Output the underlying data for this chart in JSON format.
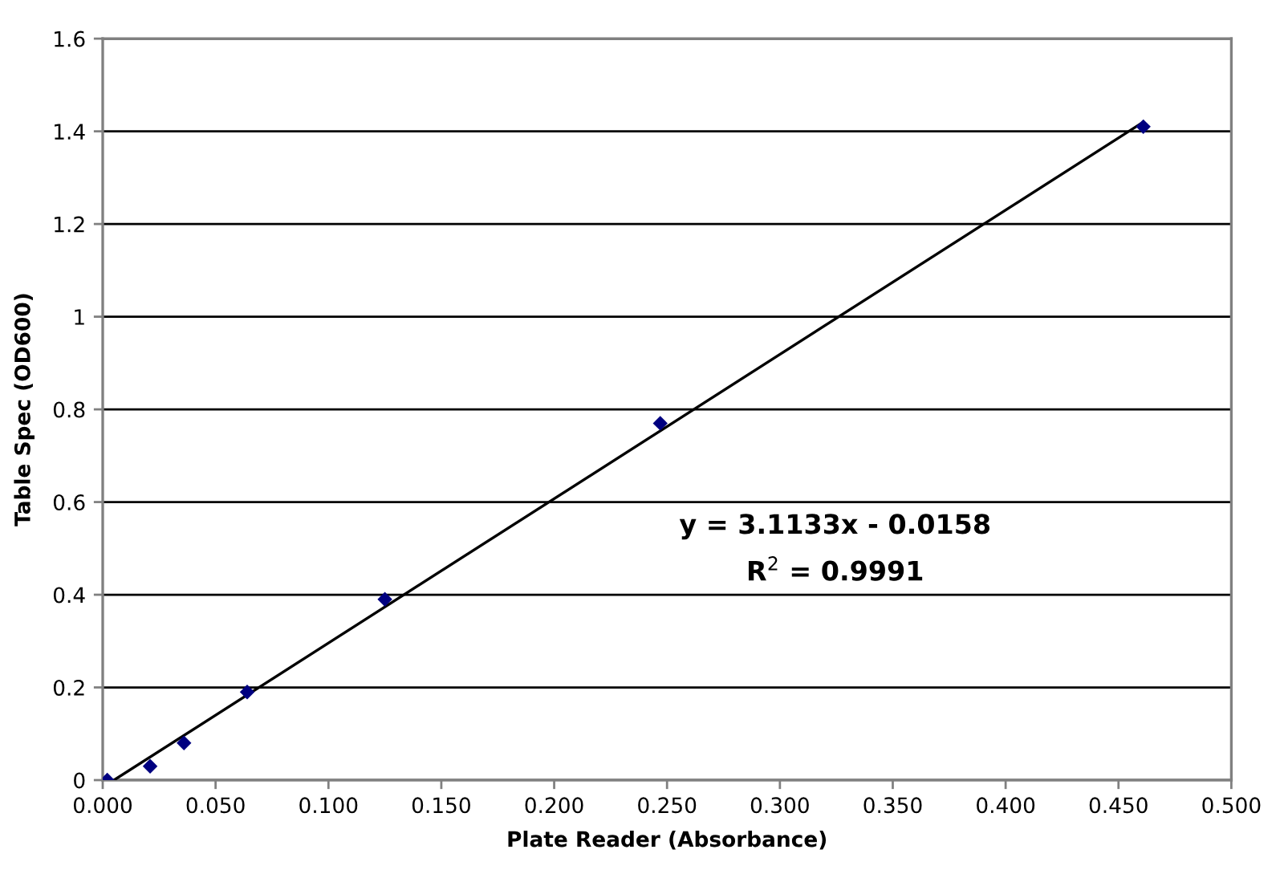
{
  "chart_data": {
    "type": "scatter",
    "xlabel": "Plate Reader (Absorbance)",
    "ylabel": "Table Spec (OD600)",
    "xlim": [
      0,
      0.5
    ],
    "xticks": [
      {
        "value": 0,
        "label": "0.000"
      },
      {
        "value": 0.05,
        "label": "0.050"
      },
      {
        "value": 0.1,
        "label": "0.100"
      },
      {
        "value": 0.15,
        "label": "0.150"
      },
      {
        "value": 0.2,
        "label": "0.200"
      },
      {
        "value": 0.25,
        "label": "0.250"
      },
      {
        "value": 0.3,
        "label": "0.300"
      },
      {
        "value": 0.35,
        "label": "0.350"
      },
      {
        "value": 0.4,
        "label": "0.400"
      },
      {
        "value": 0.45,
        "label": "0.450"
      },
      {
        "value": 0.5,
        "label": "0.500"
      }
    ],
    "ylim": [
      0,
      1.6
    ],
    "yticks": [
      0,
      0.2,
      0.4,
      0.6,
      0.8,
      1,
      1.2,
      1.4,
      1.6
    ],
    "grid": "y",
    "annotations": [
      "y = 3.1133x - 0.0158",
      "R$^{2}$ = 0.9991"
    ],
    "series": [
      {
        "color": "#000080",
        "marker": "diamond",
        "x": [
          0.002,
          0.021,
          0.036,
          0.064,
          0.125,
          0.247,
          0.461
        ],
        "values": [
          0,
          0.03,
          0.08,
          0.19,
          0.39,
          0.77,
          1.41
        ]
      },
      {
        "type": "line",
        "color": "#000000",
        "marker": "none",
        "line_style": "solid",
        "x": [
          0.005,
          0.461
        ],
        "values": [
          0,
          1.42
        ]
      }
    ]
  }
}
